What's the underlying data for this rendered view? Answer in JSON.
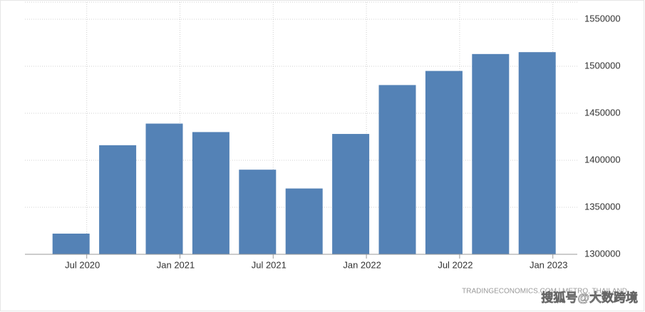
{
  "chart_data": {
    "type": "bar",
    "categories": [
      "Jul 2020",
      null,
      "Jan 2021",
      null,
      "Jul 2021",
      null,
      "Jan 2022",
      null,
      "Jul 2022",
      null,
      "Jan 2023"
    ],
    "values": [
      1322000,
      1416000,
      1439000,
      1430000,
      1390000,
      1370000,
      1428000,
      1480000,
      1495000,
      1513000,
      1515000
    ],
    "color": "#5482b6",
    "ylim": [
      1300000,
      1550000
    ],
    "yticks": [
      1300000,
      1350000,
      1400000,
      1450000,
      1500000,
      1550000
    ],
    "grid": true
  },
  "source": "TRADINGECONOMICS.COM | METRO, THAILAND",
  "watermark": "搜狐号@大数跨境"
}
